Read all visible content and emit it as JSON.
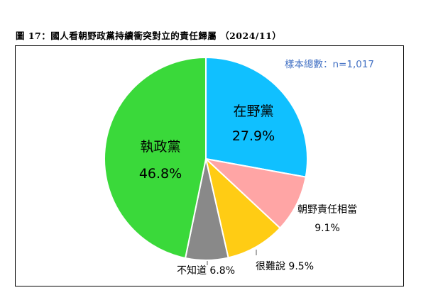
{
  "figure_title": "圖 17：國人看朝野政黨持續衝突對立的責任歸屬 （2024/11）",
  "sample_note": "樣本總數：n=1,017",
  "chart_data": {
    "type": "pie",
    "title": "圖 17：國人看朝野政黨持續衝突對立的責任歸屬 （2024/11）",
    "slices": [
      {
        "label": "在野黨",
        "value": 27.9,
        "value_text": "27.9%",
        "color": "#10c0ff"
      },
      {
        "label": "朝野責任相當",
        "value": 9.1,
        "value_text": "9.1%",
        "color": "#ffa5a5"
      },
      {
        "label": "很難說",
        "value": 9.5,
        "value_text": "9.5%",
        "color": "#ffcc14"
      },
      {
        "label": "不知道",
        "value": 6.8,
        "value_text": "6.8%",
        "color": "#898989"
      },
      {
        "label": "執政黨",
        "value": 46.8,
        "value_text": "46.8%",
        "color": "#3ad93a"
      }
    ],
    "start_angle_deg": 0,
    "direction": "clockwise",
    "legend": "none",
    "grid": false
  }
}
